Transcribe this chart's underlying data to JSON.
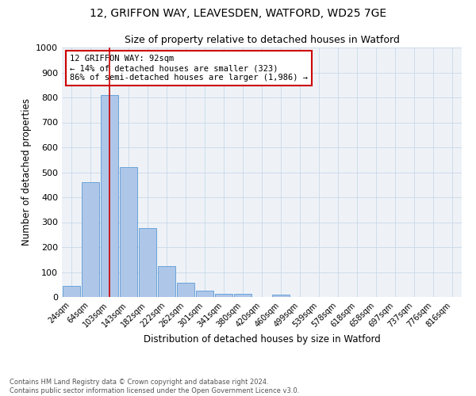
{
  "title": "12, GRIFFON WAY, LEAVESDEN, WATFORD, WD25 7GE",
  "subtitle": "Size of property relative to detached houses in Watford",
  "xlabel": "Distribution of detached houses by size in Watford",
  "ylabel": "Number of detached properties",
  "bar_labels": [
    "24sqm",
    "64sqm",
    "103sqm",
    "143sqm",
    "182sqm",
    "222sqm",
    "262sqm",
    "301sqm",
    "341sqm",
    "380sqm",
    "420sqm",
    "460sqm",
    "499sqm",
    "539sqm",
    "578sqm",
    "618sqm",
    "658sqm",
    "697sqm",
    "737sqm",
    "776sqm",
    "816sqm"
  ],
  "bar_values": [
    45,
    460,
    808,
    520,
    275,
    125,
    58,
    25,
    12,
    13,
    0,
    9,
    0,
    0,
    0,
    0,
    0,
    0,
    0,
    0,
    0
  ],
  "bar_color": "#aec6e8",
  "bar_edge_color": "#5b9bd5",
  "vline_x": 2,
  "vline_color": "#cc0000",
  "annotation_text": "12 GRIFFON WAY: 92sqm\n← 14% of detached houses are smaller (323)\n86% of semi-detached houses are larger (1,986) →",
  "annotation_box_color": "#ffffff",
  "annotation_box_edge": "#cc0000",
  "ylim": [
    0,
    1000
  ],
  "yticks": [
    0,
    100,
    200,
    300,
    400,
    500,
    600,
    700,
    800,
    900,
    1000
  ],
  "grid_color": "#c8d8e8",
  "background_color": "#eef2f7",
  "footer": "Contains HM Land Registry data © Crown copyright and database right 2024.\nContains public sector information licensed under the Open Government Licence v3.0."
}
